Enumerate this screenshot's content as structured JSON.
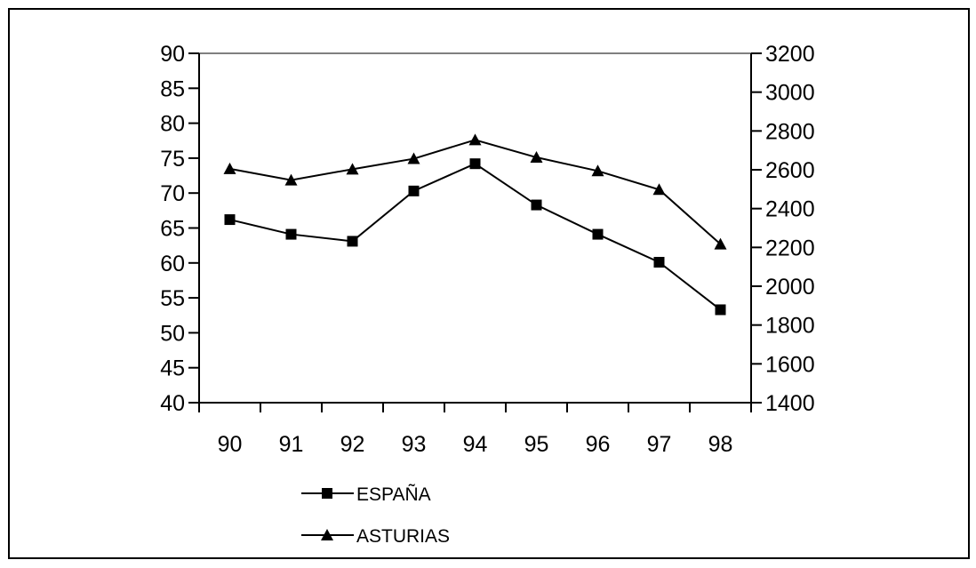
{
  "chart_data": {
    "type": "line",
    "title": "",
    "categories": [
      "90",
      "91",
      "92",
      "93",
      "94",
      "95",
      "96",
      "97",
      "98"
    ],
    "y_left": {
      "range": [
        40,
        90
      ],
      "ticks": [
        "40",
        "45",
        "50",
        "55",
        "60",
        "65",
        "70",
        "75",
        "80",
        "85",
        "90"
      ]
    },
    "y_right": {
      "range": [
        1400,
        3200
      ],
      "ticks": [
        "1400",
        "1600",
        "1800",
        "2000",
        "2200",
        "2400",
        "2600",
        "2800",
        "3000",
        "3200"
      ]
    },
    "grid": false,
    "legend_position": "bottom-left",
    "series": [
      {
        "name": "ESPAÑA",
        "axis": "left",
        "marker": "square",
        "color": "#000000",
        "values": [
          66.2,
          64.1,
          63.1,
          70.3,
          74.2,
          68.3,
          64.1,
          60.1,
          53.3
        ]
      },
      {
        "name": "ASTURIAS",
        "axis": "right",
        "marker": "triangle",
        "color": "#000000",
        "values": [
          2605,
          2547,
          2603,
          2657,
          2754,
          2664,
          2594,
          2498,
          2217
        ]
      }
    ]
  }
}
